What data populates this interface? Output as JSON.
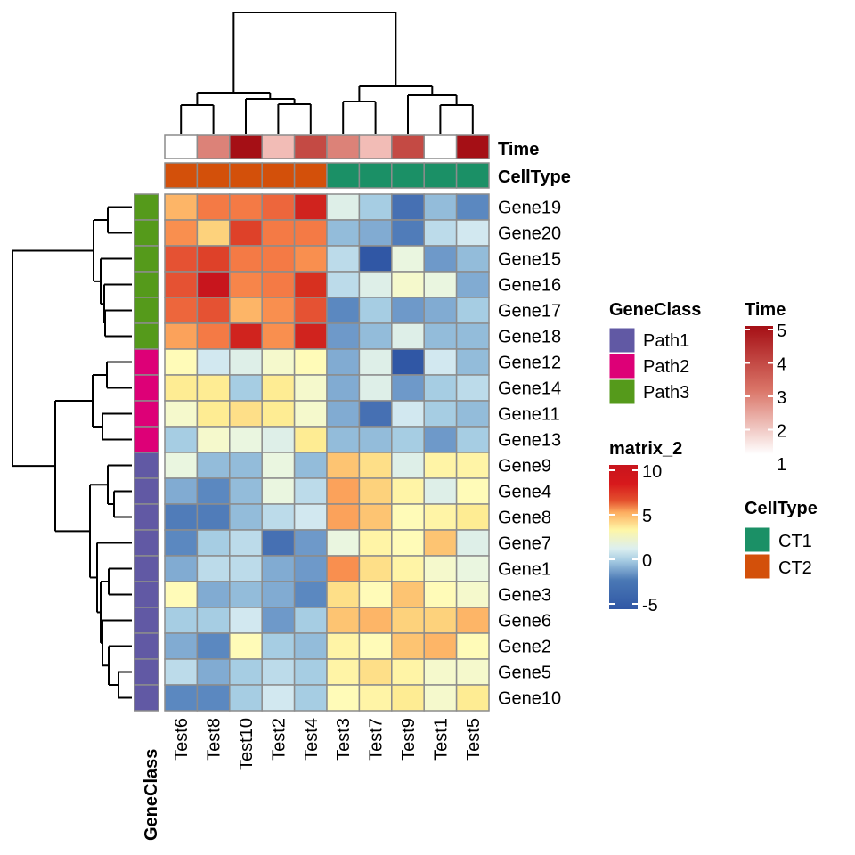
{
  "chart_data": {
    "type": "heatmap",
    "title": "",
    "columns": [
      "Test6",
      "Test8",
      "Test10",
      "Test2",
      "Test4",
      "Test3",
      "Test7",
      "Test9",
      "Test1",
      "Test5"
    ],
    "rows": [
      "Gene19",
      "Gene20",
      "Gene15",
      "Gene16",
      "Gene17",
      "Gene18",
      "Gene12",
      "Gene14",
      "Gene11",
      "Gene13",
      "Gene9",
      "Gene4",
      "Gene8",
      "Gene7",
      "Gene1",
      "Gene3",
      "Gene6",
      "Gene2",
      "Gene5",
      "Gene10"
    ],
    "values": [
      [
        5,
        7,
        7,
        7.5,
        9.5,
        0.5,
        -1,
        -4,
        -1.5,
        -3
      ],
      [
        6,
        4,
        8.5,
        7,
        7,
        -1.5,
        -2,
        -3.5,
        -0.5,
        0
      ],
      [
        8,
        8.5,
        7,
        7,
        6,
        -0.5,
        -5,
        1,
        -2.5,
        -1.5
      ],
      [
        8,
        10,
        6.5,
        7,
        9,
        -0.5,
        0.5,
        1.5,
        1,
        -2
      ],
      [
        7.5,
        8,
        5,
        6,
        8,
        -3,
        -1,
        -2.5,
        -2,
        -1
      ],
      [
        5.5,
        7,
        9.5,
        6,
        9.5,
        -2.5,
        -1.5,
        0.5,
        -1.5,
        -1.5
      ],
      [
        2,
        0,
        0.5,
        1.5,
        2,
        -2,
        0.5,
        -5,
        0,
        -1.5
      ],
      [
        3,
        3,
        -1,
        3,
        1.5,
        -2,
        0.5,
        -2.5,
        -1,
        -0.5
      ],
      [
        1.5,
        3,
        3.5,
        3,
        1.5,
        -2,
        -4,
        0,
        -1,
        -1.5
      ],
      [
        -1,
        1.5,
        1,
        0.5,
        3,
        -1.5,
        -1.5,
        -1,
        -2.5,
        -1
      ],
      [
        1,
        -1.5,
        -1.5,
        1,
        -1.5,
        4.5,
        3.5,
        0.5,
        2.5,
        2.5
      ],
      [
        -2,
        -3,
        -1.5,
        1,
        -0.5,
        5.5,
        4,
        2.5,
        0.5,
        2
      ],
      [
        -3.5,
        -3.5,
        -1.5,
        -0.5,
        0,
        5.5,
        4.5,
        2,
        2.5,
        3
      ],
      [
        -3,
        -1,
        -0.5,
        -4,
        -2.5,
        1,
        2.5,
        2,
        4.5,
        0.5
      ],
      [
        -2,
        -0.5,
        -0.5,
        -2,
        -2.5,
        6,
        3.5,
        2.5,
        1.5,
        1
      ],
      [
        2,
        -2,
        -1.5,
        -2,
        -3,
        3.5,
        2,
        4.5,
        2,
        1.5
      ],
      [
        -1,
        -1,
        0,
        -2.5,
        -1,
        4.5,
        5,
        4,
        4,
        5
      ],
      [
        -2,
        -3,
        2,
        -1,
        -1.5,
        2.5,
        2,
        4.5,
        5,
        2
      ],
      [
        -0.5,
        -2,
        -1,
        -0.5,
        -1,
        2.5,
        3.5,
        2.5,
        1.5,
        1.5
      ],
      [
        -3,
        -3,
        -1,
        0,
        -1,
        2,
        2.5,
        3,
        1.5,
        3
      ]
    ],
    "column_annotations": {
      "Time": {
        "label": "Time",
        "values": [
          1,
          3,
          5,
          2,
          4,
          3,
          2,
          4,
          1,
          5
        ]
      },
      "CellType": {
        "label": "CellType",
        "values": [
          "CT2",
          "CT2",
          "CT2",
          "CT2",
          "CT2",
          "CT1",
          "CT1",
          "CT1",
          "CT1",
          "CT1"
        ]
      }
    },
    "row_annotation": {
      "label": "GeneClass",
      "values": [
        "Path3",
        "Path3",
        "Path3",
        "Path3",
        "Path3",
        "Path3",
        "Path2",
        "Path2",
        "Path2",
        "Path2",
        "Path1",
        "Path1",
        "Path1",
        "Path1",
        "Path1",
        "Path1",
        "Path1",
        "Path1",
        "Path1",
        "Path1"
      ]
    },
    "legends": {
      "geneclass": {
        "title": "GeneClass",
        "entries": [
          {
            "label": "Path1",
            "color": "#6159A4"
          },
          {
            "label": "Path2",
            "color": "#DD0077"
          },
          {
            "label": "Path3",
            "color": "#559A1B"
          }
        ]
      },
      "matrix": {
        "title": "matrix_2",
        "ticks": [
          "10",
          "5",
          "0",
          "-5"
        ],
        "range": [
          -5,
          10
        ]
      },
      "time": {
        "title": "Time",
        "ticks": [
          "5",
          "4",
          "3",
          "2",
          "1"
        ],
        "range": [
          1,
          5
        ]
      },
      "celltype": {
        "title": "CellType",
        "entries": [
          {
            "label": "CT1",
            "color": "#1B9066"
          },
          {
            "label": "CT2",
            "color": "#D3500A"
          }
        ]
      }
    },
    "col_dendrogram_order": [
      "Test6",
      "Test8",
      "Test10",
      "Test2",
      "Test4",
      "Test3",
      "Test7",
      "Test9",
      "Test1",
      "Test5"
    ],
    "row_dendrogram_order": [
      "Gene19",
      "Gene20",
      "Gene15",
      "Gene16",
      "Gene17",
      "Gene18",
      "Gene12",
      "Gene14",
      "Gene11",
      "Gene13",
      "Gene9",
      "Gene4",
      "Gene8",
      "Gene7",
      "Gene1",
      "Gene3",
      "Gene6",
      "Gene2",
      "Gene5",
      "Gene10"
    ]
  },
  "colors": {
    "celltype": {
      "CT1": "#1B9066",
      "CT2": "#D3500A"
    },
    "geneclass": {
      "Path1": "#6159A4",
      "Path2": "#DD0077",
      "Path3": "#559A1B"
    },
    "time_low": "#FFFFFF",
    "time_high": "#A50F15",
    "cell_border": "#8C8C8C"
  }
}
